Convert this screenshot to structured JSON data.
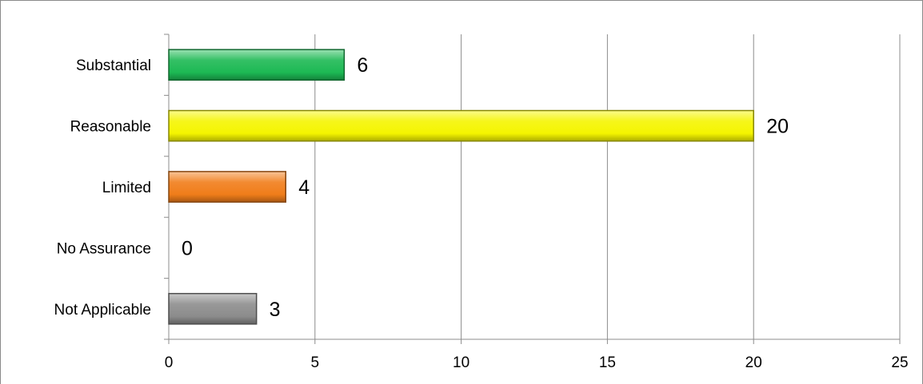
{
  "chart_data": {
    "type": "bar",
    "orientation": "horizontal",
    "categories": [
      "Substantial",
      "Reasonable",
      "Limited",
      "No Assurance",
      "Not Applicable"
    ],
    "values": [
      6,
      20,
      4,
      0,
      3
    ],
    "colors": [
      "#1db954",
      "#f5f500",
      "#f07d1a",
      "#2fb84f",
      "#8c8c8c"
    ],
    "xlim": [
      0,
      25
    ],
    "xticks": [
      0,
      5,
      10,
      15,
      20,
      25
    ],
    "title": "",
    "xlabel": "",
    "ylabel": "",
    "grid": "vertical",
    "legend": "none"
  }
}
